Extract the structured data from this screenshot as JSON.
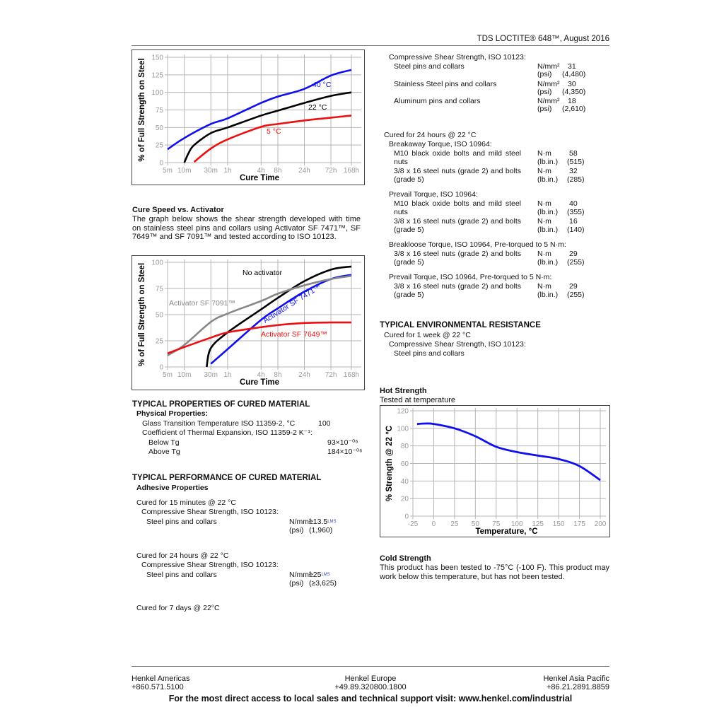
{
  "header": {
    "title": "TDS LOCTITE® 648™,   August 2016"
  },
  "left": {
    "cure_speed_heading": "Cure Speed vs. Activator",
    "cure_speed_text": "The graph below shows the shear strength developed with time on stainless steel pins and collars using Activator SF 7471™, SF 7649™ and SF 7091™ and tested according to ISO 10123.",
    "props_heading": "TYPICAL PROPERTIES OF CURED MATERIAL",
    "physical_heading": "Physical Properties:",
    "tg_label": "Glass Transition Temperature ISO 11359-2, °C",
    "tg_value": "100",
    "cte_label": "Coefficient of Thermal Expansion,  ISO 11359-2 K⁻¹:",
    "below_tg_label": "Below Tg",
    "below_tg_value": "93×10⁻⁰⁶",
    "above_tg_label": "Above Tg",
    "above_tg_value": "184×10⁻⁰⁶",
    "perf_heading": "TYPICAL PERFORMANCE OF CURED MATERIAL",
    "adhesive_heading": "Adhesive Properties",
    "cure15_label": "Cured for 15 minutes @ 22 °C",
    "cure15_test": "Compressive Shear Strength, ISO 10123:",
    "cure15_item": "Steel pins and collars",
    "cure15_unit1": "N/mm²",
    "cure15_val1": "≥13.5",
    "cure15_sup": "LMS",
    "cure15_unit2": "(psi)",
    "cure15_val2": "(1,960)",
    "cure24_label": "Cured for 24 hours @ 22 °C",
    "cure24_test": "Compressive Shear Strength, ISO 10123:",
    "cure24_item": "Steel pins and collars",
    "cure24_unit1": "N/mm²",
    "cure24_val1": "≥25",
    "cure24_sup": "LMS",
    "cure24_unit2": "(psi)",
    "cure24_val2": "(≥3,625)",
    "cure7d_label": "Cured for 7 days @ 22°C"
  },
  "right": {
    "css_heading": "Compressive Shear Strength, ISO 10123:",
    "css_rows": [
      {
        "item": "Steel pins and collars",
        "u1": "N/mm²",
        "v1": "31",
        "u2": "(psi)",
        "v2": "(4,480)"
      },
      {
        "item": "Stainless Steel pins and collars",
        "u1": "N/mm²",
        "v1": "30",
        "u2": "(psi)",
        "v2": "(4,350)"
      },
      {
        "item": "Aluminum pins and collars",
        "u1": "N/mm²",
        "v1": "18",
        "u2": "(psi)",
        "v2": "(2,610)"
      }
    ],
    "cure24_label": "Cured for 24 hours @ 22 °C",
    "torque_groups": [
      {
        "heading": "Breakaway Torque, ISO 10964:",
        "rows": [
          {
            "l1": "M10 black oxide bolts and mild steel",
            "l2": "nuts",
            "u1": "N·m",
            "v1": "58",
            "u2": "(lb.in.)",
            "v2": "(515)"
          },
          {
            "l1": "3/8 x 16 steel nuts (grade 2) and bolts",
            "l2": "(grade 5)",
            "u1": "N·m",
            "v1": "32",
            "u2": "(lb.in.)",
            "v2": "(285)"
          }
        ]
      },
      {
        "heading": "Prevail Torque, ISO 10964:",
        "rows": [
          {
            "l1": "M10 black oxide bolts and mild steel",
            "l2": "nuts",
            "u1": "N·m",
            "v1": "40",
            "u2": "(lb.in.)",
            "v2": "(355)"
          },
          {
            "l1": "3/8 x 16 steel nuts (grade 2) and bolts",
            "l2": "(grade 5)",
            "u1": "N·m",
            "v1": "16",
            "u2": "(lb.in.)",
            "v2": "(140)"
          }
        ]
      },
      {
        "heading": "Breakloose Torque, ISO 10964, Pre-torqued to 5 N·m:",
        "rows": [
          {
            "l1": "3/8 x 16 steel nuts (grade 2) and bolts",
            "l2": "(grade 5)",
            "u1": "N·m",
            "v1": "29",
            "u2": "(lb.in.)",
            "v2": "(255)"
          }
        ]
      },
      {
        "heading": "Prevail Torque, ISO 10964, Pre-torqued to 5 N·m:",
        "rows": [
          {
            "l1": "3/8 x 16 steel nuts (grade 2) and bolts",
            "l2": "(grade 5)",
            "u1": "N·m",
            "v1": "29",
            "u2": "(lb.in.)",
            "v2": "(255)"
          }
        ]
      }
    ],
    "env_heading": "TYPICAL ENVIRONMENTAL  RESISTANCE",
    "env_cure": "Cured for 1  week @ 22 °C",
    "env_test": "Compressive Shear Strength, ISO 10123:",
    "env_item": "Steel pins and collars",
    "hot_heading": "Hot Strength",
    "hot_sub": "Tested at temperature",
    "cold_heading": "Cold Strength",
    "cold_text": "This product has been tested to -75°C (-100 F). This product may work below this temperature, but has not been tested."
  },
  "footer": {
    "americas_name": "Henkel Americas",
    "americas_phone": "+860.571.5100",
    "europe_name": "Henkel Europe",
    "europe_phone": "+49.89.320800.1800",
    "asia_name": "Henkel  Asia Pacific",
    "asia_phone": "+86.21.2891.8859",
    "support": "For the most direct access to local sales and technical support visit: www.henkel.com/industrial"
  },
  "chart_data": [
    {
      "type": "line",
      "xlabel": "Cure Time",
      "ylabel": "% of Full Strength on Steel",
      "x_scale": "log",
      "x_unit": "hours",
      "x_ticks": [
        {
          "h": 0.0833,
          "label": "5m"
        },
        {
          "h": 0.1667,
          "label": "10m"
        },
        {
          "h": 0.5,
          "label": "30m"
        },
        {
          "h": 1,
          "label": "1h"
        },
        {
          "h": 4,
          "label": "4h"
        },
        {
          "h": 8,
          "label": "8h"
        },
        {
          "h": 24,
          "label": "24h"
        },
        {
          "h": 72,
          "label": "72h"
        },
        {
          "h": 168,
          "label": "168h"
        }
      ],
      "ylim": [
        0,
        150
      ],
      "y_ticks": [
        0,
        25,
        50,
        75,
        100,
        125,
        150
      ],
      "grid": true,
      "series": [
        {
          "name": "40 °C",
          "color": "#1010ee",
          "points": [
            [
              0.0833,
              19
            ],
            [
              0.1667,
              35
            ],
            [
              0.5,
              55
            ],
            [
              1,
              63
            ],
            [
              4,
              85
            ],
            [
              8,
              94
            ],
            [
              24,
              105
            ],
            [
              72,
              124
            ],
            [
              168,
              132
            ]
          ]
        },
        {
          "name": "22 °C",
          "color": "#000000",
          "points": [
            [
              0.1667,
              0
            ],
            [
              0.2,
              14
            ],
            [
              0.25,
              25
            ],
            [
              0.5,
              42
            ],
            [
              1,
              50
            ],
            [
              4,
              67
            ],
            [
              8,
              74
            ],
            [
              24,
              85
            ],
            [
              72,
              95
            ],
            [
              168,
              100
            ]
          ]
        },
        {
          "name": "5 °C",
          "color": "#ee1010",
          "points": [
            [
              0.25,
              1
            ],
            [
              0.5,
              20
            ],
            [
              1,
              33
            ],
            [
              4,
              51
            ],
            [
              8,
              55
            ],
            [
              24,
              60
            ],
            [
              72,
              64
            ],
            [
              168,
              67
            ]
          ]
        }
      ]
    },
    {
      "type": "line",
      "xlabel": "Cure Time",
      "ylabel": "% of Full Strength on Steel",
      "x_scale": "log",
      "x_unit": "hours",
      "x_ticks": [
        {
          "h": 0.0833,
          "label": "5m"
        },
        {
          "h": 0.1667,
          "label": "10m"
        },
        {
          "h": 0.5,
          "label": "30m"
        },
        {
          "h": 1,
          "label": "1h"
        },
        {
          "h": 4,
          "label": "4h"
        },
        {
          "h": 8,
          "label": "8h"
        },
        {
          "h": 24,
          "label": "24h"
        },
        {
          "h": 72,
          "label": "72h"
        },
        {
          "h": 168,
          "label": "168h"
        }
      ],
      "ylim": [
        0,
        100
      ],
      "y_ticks": [
        0,
        25,
        50,
        75,
        100
      ],
      "grid": true,
      "series": [
        {
          "name": "No activator",
          "color": "#000000",
          "points": [
            [
              0.42,
              0
            ],
            [
              0.5,
              18
            ],
            [
              1,
              33
            ],
            [
              4,
              55
            ],
            [
              8,
              66
            ],
            [
              24,
              82
            ],
            [
              72,
              93
            ],
            [
              168,
              96
            ]
          ]
        },
        {
          "name": "Activator SF 7471™",
          "color": "#1010ee",
          "points": [
            [
              0.5,
              3
            ],
            [
              1,
              17
            ],
            [
              4,
              45
            ],
            [
              8,
              56
            ],
            [
              24,
              72
            ],
            [
              72,
              84
            ],
            [
              168,
              88
            ]
          ]
        },
        {
          "name": "Activator SF 7091™",
          "color": "#888888",
          "points": [
            [
              0.0833,
              11
            ],
            [
              0.1667,
              21
            ],
            [
              0.5,
              43
            ],
            [
              1,
              51
            ],
            [
              4,
              63
            ],
            [
              8,
              70
            ],
            [
              24,
              78
            ],
            [
              72,
              84
            ],
            [
              168,
              87
            ]
          ]
        },
        {
          "name": "Activator SF 7649™",
          "color": "#ee1010",
          "points": [
            [
              0.0833,
              13
            ],
            [
              0.1667,
              19
            ],
            [
              0.5,
              28
            ],
            [
              1,
              33
            ],
            [
              4,
              38
            ],
            [
              8,
              40
            ],
            [
              24,
              42
            ],
            [
              72,
              42.5
            ],
            [
              168,
              42.5
            ]
          ]
        }
      ]
    },
    {
      "type": "line",
      "title": "Hot Strength",
      "xlabel": "Temperature, °C",
      "ylabel": "% Strength @ 22 °C",
      "xlim": [
        -25,
        200
      ],
      "ylim": [
        0,
        120
      ],
      "x_ticks": [
        -25,
        0,
        25,
        50,
        75,
        100,
        125,
        150,
        175,
        200
      ],
      "y_ticks": [
        0,
        20,
        40,
        60,
        80,
        100,
        120
      ],
      "grid": true,
      "series": [
        {
          "color": "#1010ee",
          "points": [
            [
              -20,
              105
            ],
            [
              -10,
              105.5
            ],
            [
              0,
              105
            ],
            [
              25,
              100
            ],
            [
              50,
              91
            ],
            [
              75,
              79
            ],
            [
              100,
              73
            ],
            [
              125,
              69
            ],
            [
              150,
              65
            ],
            [
              175,
              57
            ],
            [
              200,
              41
            ]
          ]
        }
      ]
    }
  ]
}
